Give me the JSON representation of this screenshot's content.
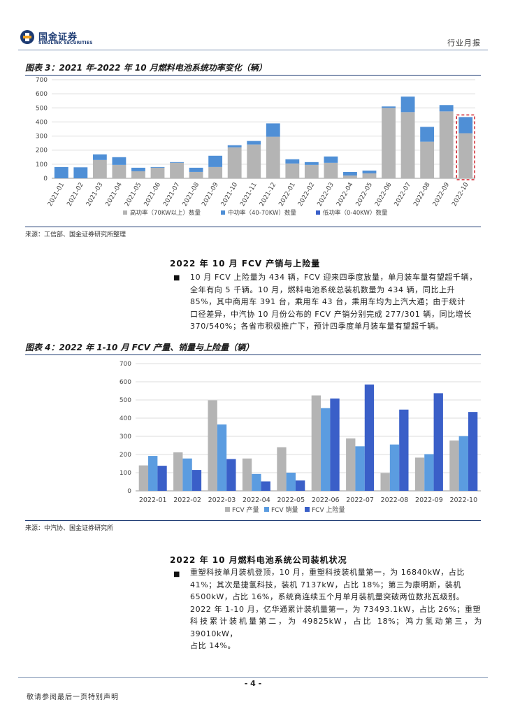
{
  "header": {
    "logo_cn": "国金证券",
    "logo_en": "SINOLINK SECURITIES",
    "report_type": "行业月报"
  },
  "figure3": {
    "title": "图表 3：2021 年-2022 年 10 月燃料电池系统功率变化（辆）",
    "source": "来源：工信部、国金证券研究所整理",
    "chart_data": {
      "type": "bar",
      "stacked": true,
      "categories": [
        "2021-01",
        "2021-02",
        "2021-03",
        "2021-04",
        "2021-05",
        "2021-06",
        "2021-07",
        "2021-08",
        "2021-09",
        "2021-10",
        "2021-11",
        "2021-12",
        "2022-01",
        "2022-02",
        "2022-03",
        "2022-04",
        "2022-05",
        "2022-06",
        "2022-07",
        "2022-08",
        "2022-09",
        "2022-10"
      ],
      "series": [
        {
          "name": "高功率（70KW以上）数量",
          "color": "#b4b4b4",
          "values": [
            0,
            0,
            130,
            95,
            50,
            75,
            110,
            45,
            80,
            220,
            240,
            295,
            105,
            95,
            110,
            20,
            35,
            500,
            470,
            260,
            475,
            320
          ]
        },
        {
          "name": "中功率（40-70KW）数量",
          "color": "#4f8fd6",
          "values": [
            80,
            78,
            40,
            55,
            25,
            5,
            5,
            30,
            80,
            15,
            25,
            95,
            30,
            20,
            45,
            25,
            20,
            10,
            110,
            105,
            45,
            115
          ]
        },
        {
          "name": "低功率（0-40KW）数量",
          "color": "#3a5fc8",
          "values": [
            0,
            0,
            0,
            0,
            0,
            0,
            0,
            0,
            0,
            0,
            0,
            0,
            0,
            0,
            0,
            0,
            0,
            0,
            0,
            0,
            0,
            0
          ]
        }
      ],
      "ylim": [
        0,
        700
      ],
      "yticks": [
        0,
        100,
        200,
        300,
        400,
        500,
        600,
        700
      ],
      "grid": true,
      "legend": "bottom",
      "highlight": "2022-10"
    }
  },
  "section1": {
    "title": "2022 年 10 月 FCV 产销与上险量",
    "lines": [
      "10 月 FCV 上险量为 434 辆，FCV 迎来四季度放量，单月装车量有望超千辆，",
      "全年有向 5 千辆。10 月，燃料电池系统总装机数量为 434 辆，同比上升",
      "85%，其中商用车 391 台，乘用车 43 台，乘用车均为上汽大通；由于统计",
      "口径差异，中汽协 10 月份公布的 FCV 产销分别完成 277/301 辆，同比增长",
      "370/540%；各省市积极推广下，预计四季度单月装车量有望超千辆。"
    ]
  },
  "figure4": {
    "title": "图表 4：2022 年 1-10 月 FCV 产量、销量与上险量（辆）",
    "source": "来源：中汽协、国金证券研究所",
    "chart_data": {
      "type": "bar",
      "categories": [
        "2022-01",
        "2022-02",
        "2022-03",
        "2022-04",
        "2022-05",
        "2022-06",
        "2022-07",
        "2022-08",
        "2022-09",
        "2022-10"
      ],
      "series": [
        {
          "name": "FCV 产量",
          "color": "#b4b4b4",
          "values": [
            140,
            212,
            498,
            178,
            240,
            525,
            288,
            98,
            183,
            277
          ]
        },
        {
          "name": "FCV 销量",
          "color": "#5b9ce0",
          "values": [
            192,
            178,
            365,
            93,
            100,
            455,
            245,
            255,
            202,
            301
          ]
        },
        {
          "name": "FCV 上险量",
          "color": "#3a5fc8",
          "values": [
            138,
            115,
            175,
            52,
            57,
            508,
            585,
            447,
            537,
            434
          ]
        }
      ],
      "ylim": [
        0,
        700
      ],
      "yticks": [
        0,
        100,
        200,
        300,
        400,
        500,
        600,
        700
      ],
      "grid": true,
      "legend": "bottom"
    }
  },
  "section2": {
    "title": "2022 年 10 月燃料电池系统公司装机状况",
    "lines": [
      "重塑科技单月装机登顶，10 月，重塑科技装机量第一，为 16840kW，占比",
      "41%；其次是捷氢科技，装机 7137kW，占比 18%；第三为康明斯，装机",
      "6500kW，占比 16%，系统商连续五个月单月装机量突破两位数兆瓦级别。",
      "2022 年 1-10 月，亿华通累计装机量第一，为 73493.1kW，占比 26%；重塑",
      "科技累计装机量第二，为 49825kW，占比 18%；鸿力氢动第三，为 39010kW，",
      "占比 14%。"
    ]
  },
  "footer": {
    "page": "- 4 -",
    "disclaimer": "敬请参阅最后一页特别声明"
  }
}
